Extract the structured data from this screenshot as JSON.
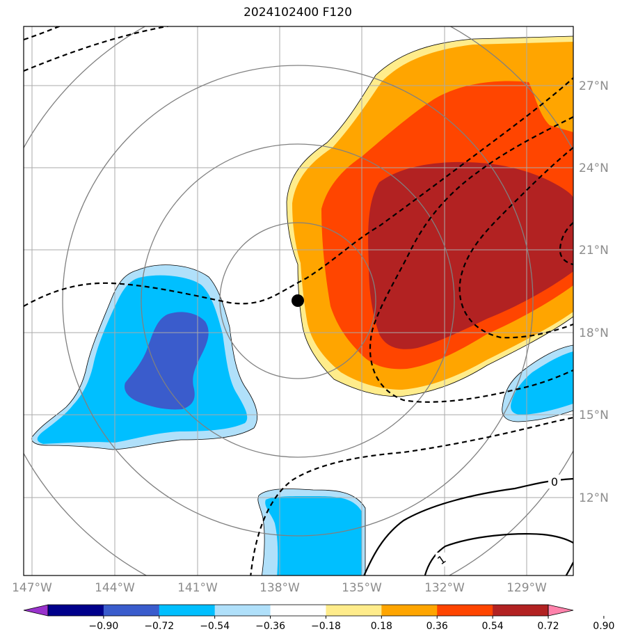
{
  "title": "2024102400 F120",
  "map": {
    "lon_labels": [
      "147°W",
      "144°W",
      "141°W",
      "138°W",
      "135°W",
      "132°W",
      "129°W"
    ],
    "lat_labels": [
      "27°N",
      "24°N",
      "21°N",
      "18°N",
      "15°N",
      "12°N"
    ],
    "center_marker": {
      "lon": "137.4°W",
      "lat": "19.2°N"
    },
    "contour_labels": [
      "0",
      "1"
    ]
  },
  "colorbar": {
    "ticks": [
      "−0.90",
      "−0.72",
      "−0.54",
      "−0.36",
      "−0.18",
      "0.18",
      "0.36",
      "0.54",
      "0.72",
      "0.90"
    ],
    "colors": [
      "#9932cc",
      "#00008b",
      "#3a5ccc",
      "#00bfff",
      "#b0e0fa",
      "#ffffff",
      "#ffec8b",
      "#ffa500",
      "#ff4500",
      "#b22222",
      "#ff82ab"
    ]
  }
}
